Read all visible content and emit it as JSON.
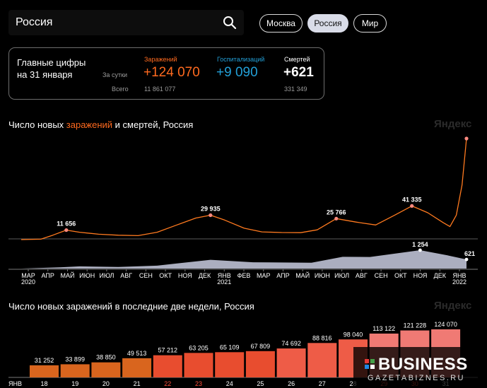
{
  "search": {
    "value": "Россия"
  },
  "region_tabs": [
    {
      "label": "Москва",
      "active": false
    },
    {
      "label": "Россия",
      "active": true
    },
    {
      "label": "Мир",
      "active": false
    }
  ],
  "summary": {
    "title_line1": "Главные цифры",
    "title_line2": "на 31 января",
    "row_label_day": "За сутки",
    "row_label_total": "Всего",
    "columns": [
      {
        "label": "Заражений",
        "day": "+124 070",
        "total": "11 861 077",
        "color": "#ff6a1f"
      },
      {
        "label": "Госпитализаций",
        "day": "+9 090",
        "total": "",
        "color": "#23a0d8"
      },
      {
        "label": "Смертей",
        "day": "+621",
        "total": "331 349",
        "color": "#ffffff"
      }
    ]
  },
  "chart1": {
    "title_pre": "Число новых ",
    "title_highlight": "заражений",
    "title_post": " и смертей, Россия",
    "watermark": "Яндекс"
  },
  "chart2": {
    "title": "Число новых заражений в последние две недели, Россия",
    "watermark": "Яндекс"
  },
  "brand": {
    "name": "BUSINESS",
    "site": "GAZETABIZNES.RU"
  },
  "chart_data": [
    {
      "type": "line",
      "title": "Число новых заражений и смертей, Россия",
      "series": [
        {
          "name": "заражений",
          "color": "#ff7a1f",
          "points": [
            [
              "2020-03-01",
              0
            ],
            [
              "2020-04-01",
              500
            ],
            [
              "2020-04-20",
              5500
            ],
            [
              "2020-05-11",
              11656
            ],
            [
              "2020-06-01",
              9000
            ],
            [
              "2020-07-01",
              6600
            ],
            [
              "2020-08-01",
              5400
            ],
            [
              "2020-09-01",
              4900
            ],
            [
              "2020-10-01",
              9000
            ],
            [
              "2020-11-01",
              18000
            ],
            [
              "2020-12-01",
              26500
            ],
            [
              "2020-12-24",
              29935
            ],
            [
              "2021-01-15",
              24000
            ],
            [
              "2021-02-15",
              14000
            ],
            [
              "2021-03-15",
              9500
            ],
            [
              "2021-04-15",
              8700
            ],
            [
              "2021-05-15",
              8500
            ],
            [
              "2021-06-10",
              12000
            ],
            [
              "2021-07-10",
              25766
            ],
            [
              "2021-08-10",
              21500
            ],
            [
              "2021-09-10",
              18000
            ],
            [
              "2021-10-10",
              30000
            ],
            [
              "2021-11-06",
              41335
            ],
            [
              "2021-12-01",
              33000
            ],
            [
              "2021-12-25",
              21000
            ],
            [
              "2022-01-05",
              16000
            ],
            [
              "2022-01-15",
              30000
            ],
            [
              "2022-01-24",
              67000
            ],
            [
              "2022-01-31",
              124070
            ]
          ],
          "labels": [
            {
              "x": "2020-05-11",
              "text": "11 656"
            },
            {
              "x": "2020-12-24",
              "text": "29 935"
            },
            {
              "x": "2021-07-10",
              "text": "25 766"
            },
            {
              "x": "2021-11-06",
              "text": "41 335"
            },
            {
              "x": "2022-01-31",
              "text": "124 070"
            }
          ]
        },
        {
          "name": "смертей",
          "color": "#c9cce0",
          "points": [
            [
              "2020-03-01",
              0
            ],
            [
              "2020-05-01",
              80
            ],
            [
              "2020-06-01",
              150
            ],
            [
              "2020-08-01",
              110
            ],
            [
              "2020-10-01",
              200
            ],
            [
              "2020-12-24",
              600
            ],
            [
              "2021-03-01",
              430
            ],
            [
              "2021-06-01",
              400
            ],
            [
              "2021-07-20",
              800
            ],
            [
              "2021-09-01",
              790
            ],
            [
              "2021-11-19",
              1254
            ],
            [
              "2022-01-01",
              900
            ],
            [
              "2022-01-31",
              621
            ]
          ],
          "labels": [
            {
              "x": "2021-11-19",
              "text": "1 254"
            },
            {
              "x": "2022-01-31",
              "text": "621"
            }
          ]
        }
      ],
      "x_ticks": [
        "МАР",
        "АПР",
        "МАЙ",
        "ИЮН",
        "ИЮЛ",
        "АВГ",
        "СЕН",
        "ОКТ",
        "НОЯ",
        "ДЕК",
        "ЯНВ",
        "ФЕВ",
        "МАР",
        "АПР",
        "МАЙ",
        "ИЮН",
        "ИЮЛ",
        "АВГ",
        "СЕН",
        "ОКТ",
        "НОЯ",
        "ДЕК",
        "ЯНВ"
      ],
      "x_years": [
        {
          "under": 0,
          "text": "2020"
        },
        {
          "under": 10,
          "text": "2021"
        },
        {
          "under": 22,
          "text": "2022"
        }
      ]
    },
    {
      "type": "bar",
      "title": "Число новых заражений в последние две недели, Россия",
      "month_label": "ЯНВ",
      "categories": [
        "18",
        "19",
        "20",
        "21",
        "22",
        "23",
        "24",
        "25",
        "26",
        "27",
        "28",
        "29",
        "30",
        "31"
      ],
      "weekend": [
        false,
        false,
        false,
        false,
        true,
        true,
        false,
        false,
        false,
        false,
        false,
        true,
        true,
        false
      ],
      "values": [
        31252,
        33899,
        38850,
        49513,
        57212,
        63205,
        65109,
        67809,
        74692,
        88816,
        98040,
        113122,
        121228,
        124070
      ],
      "value_labels": [
        "31 252",
        "33 899",
        "38 850",
        "49 513",
        "57 212",
        "63 205",
        "65 109",
        "67 809",
        "74 692",
        "88 816",
        "98 040",
        "113 122",
        "121 228",
        "124 070"
      ],
      "colors": [
        "#d9651e",
        "#d9651e",
        "#d9651e",
        "#d9651e",
        "#e84d2f",
        "#e84d2f",
        "#e84d2f",
        "#e84d2f",
        "#ee5c47",
        "#ee5c47",
        "#ee5c47",
        "#f07a74",
        "#f07a74",
        "#f07a74"
      ],
      "ylim": [
        0,
        124070
      ]
    }
  ]
}
